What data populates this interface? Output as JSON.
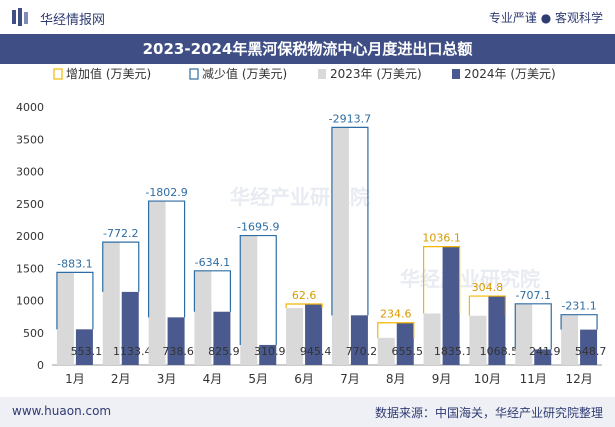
{
  "header": {
    "brand": "华经情报网",
    "tagline": "专业严谨 ● 客观科学"
  },
  "title": "2023-2024年黑河保税物流中心月度进出口总额",
  "footer": {
    "site": "www.huaon.com",
    "source": "数据来源：中国海关，华经产业研究院整理"
  },
  "watermark": "华经产业研究院",
  "colors": {
    "header_bg": "#3f4f86",
    "bar_2023": "#d9d9d9",
    "bar_2024": "#4a5a8f",
    "increase": "#f2b705",
    "decrease": "#2e6da4"
  },
  "chart_data": {
    "type": "bar",
    "categories": [
      "1月",
      "2月",
      "3月",
      "4月",
      "5月",
      "6月",
      "7月",
      "8月",
      "9月",
      "10月",
      "11月",
      "12月"
    ],
    "series": [
      {
        "name": "2023年 (万美元)",
        "values": [
          1436.2,
          1905.6,
          2541.5,
          1460.0,
          2006.8,
          882.8,
          3684.0,
          420.9,
          799.0,
          763.7,
          949.0,
          779.9
        ]
      },
      {
        "name": "2024年 (万美元)",
        "values": [
          553.1,
          1133.4,
          738.6,
          825.9,
          310.9,
          945.4,
          770.2,
          655.5,
          1835.1,
          1068.5,
          241.9,
          548.7
        ]
      }
    ],
    "change_values": [
      -883.1,
      -772.2,
      -1802.9,
      -634.1,
      -1695.9,
      62.6,
      -2913.7,
      234.6,
      1036.1,
      304.8,
      -707.1,
      -231.1
    ],
    "change_labels": [
      "-883.1",
      "-772.2",
      "-1802.9",
      "-634.1",
      "-1695.9",
      "62.6",
      "-2913.7",
      "234.6",
      "1036.1",
      "304.8",
      "-707.1",
      "-231.1"
    ],
    "value_labels_2024": [
      "553.1",
      "1133.4",
      "738.6",
      "825.9",
      "310.9",
      "945.4",
      "770.2",
      "655.5",
      "1835.1",
      "1068.5",
      "241.9",
      "548.7"
    ],
    "legend": [
      "增加值 (万美元)",
      "减少值 (万美元)",
      "2023年 (万美元)",
      "2024年 (万美元)"
    ],
    "legend_position": "top",
    "y_ticks": [
      "0",
      "500",
      "1000",
      "1500",
      "2000",
      "2500",
      "3000",
      "3500",
      "4000"
    ],
    "ylim": [
      0,
      4000
    ],
    "grid": false
  }
}
